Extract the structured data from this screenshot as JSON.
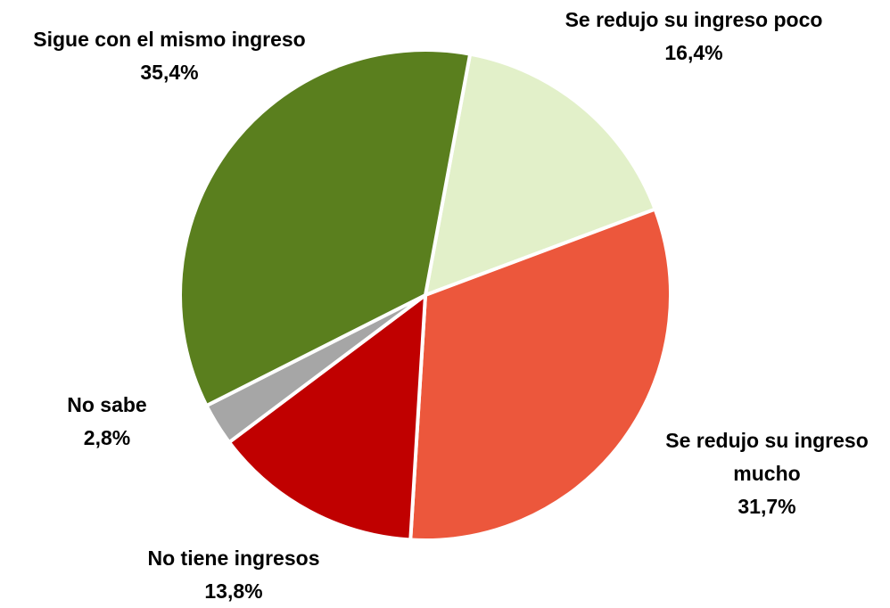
{
  "chart_data": {
    "type": "pie",
    "categories": [
      "Se redujo su ingreso poco",
      "Se redujo su ingreso mucho",
      "No tiene ingresos",
      "No sabe",
      "Sigue con el mismo ingreso"
    ],
    "values": [
      16.4,
      31.7,
      13.8,
      2.8,
      35.4
    ],
    "value_labels": [
      "16,4%",
      "31,7%",
      "13,8%",
      "2,8%",
      "35,4%"
    ],
    "colors": [
      "#e2f0c9",
      "#ec573c",
      "#c00000",
      "#a6a6a6",
      "#5a7f1e"
    ]
  }
}
